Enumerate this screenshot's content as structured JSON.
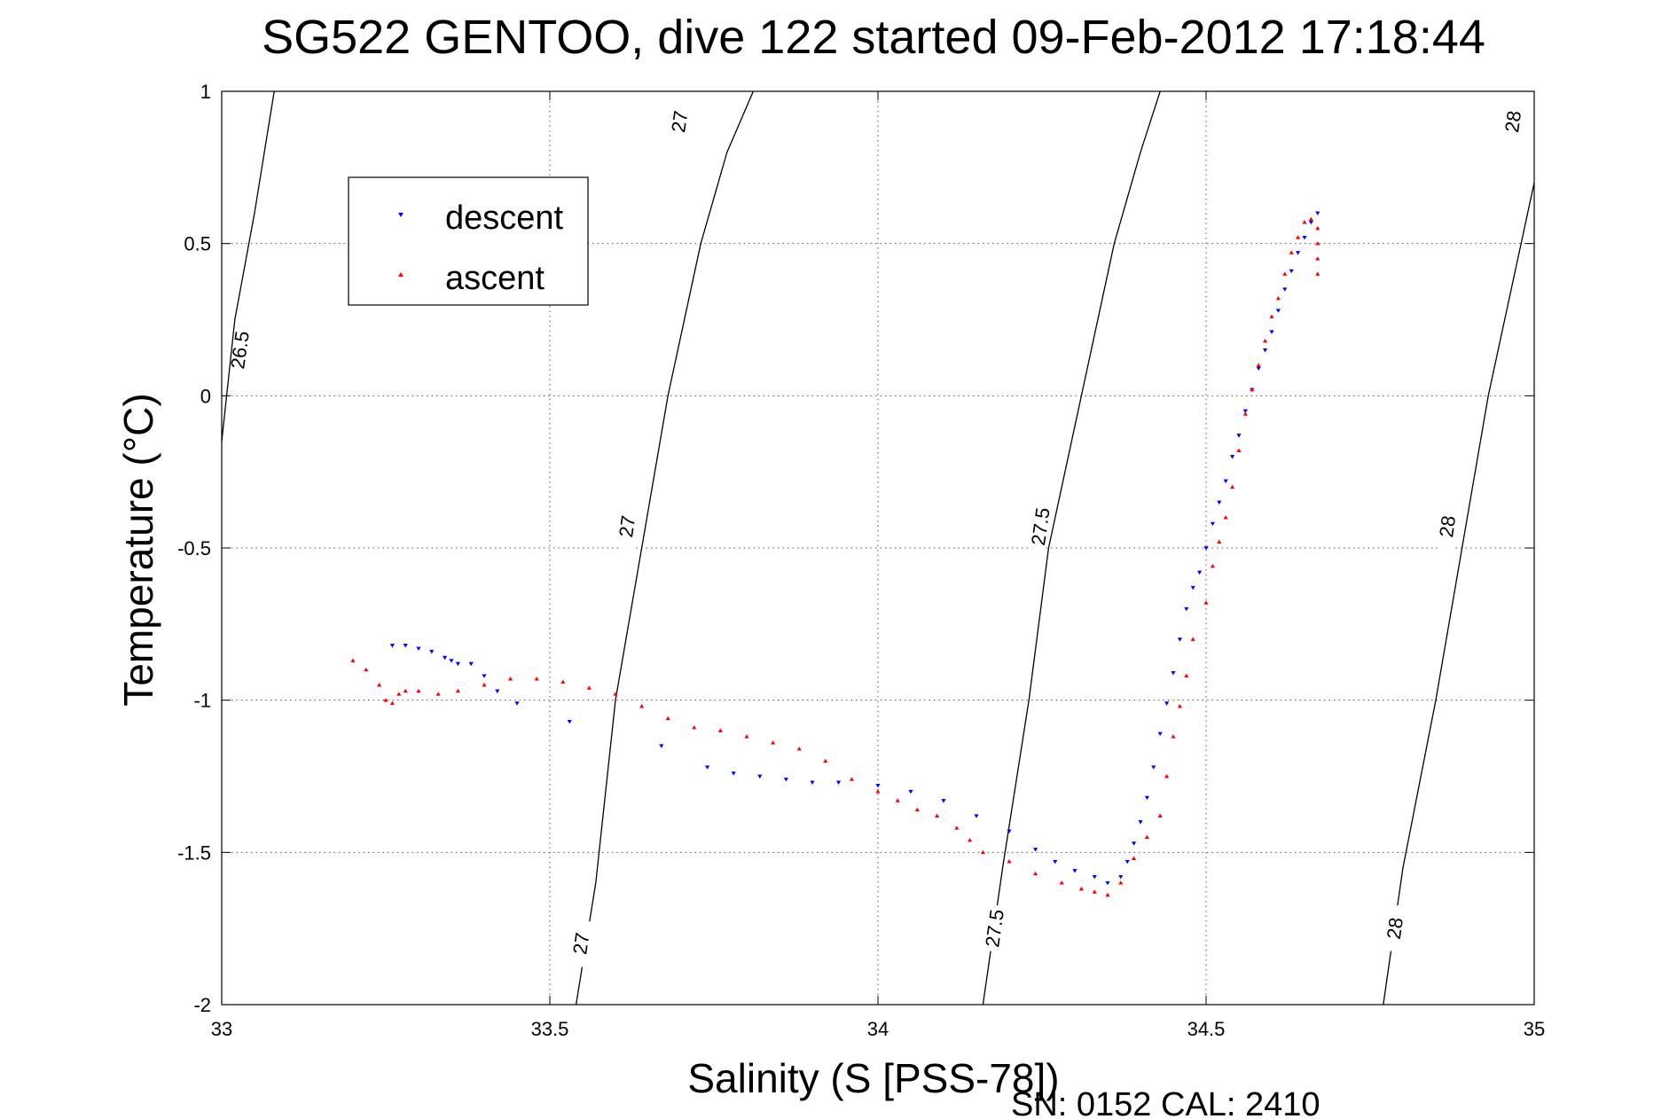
{
  "chart_data": {
    "type": "scatter",
    "title": "SG522 GENTOO, dive 122 started 09-Feb-2012 17:18:44",
    "xlabel": "Salinity (S [PSS-78])",
    "ylabel": "Temperature (°C)",
    "xlim": [
      33,
      35
    ],
    "ylim": [
      -2,
      1
    ],
    "xticks": [
      33,
      33.5,
      34,
      34.5,
      35
    ],
    "xtick_labels": [
      "33",
      "33.5",
      "34",
      "34.5",
      "35"
    ],
    "yticks": [
      -2,
      -1.5,
      -1,
      -0.5,
      0,
      0.5,
      1
    ],
    "ytick_labels": [
      "-2",
      "-1.5",
      "-1",
      "-0.5",
      "0",
      "0.5",
      "1"
    ],
    "grid": true,
    "legend_position": "top-left",
    "footer": "SN: 0152  CAL: 2410",
    "colors": {
      "descent": "#0000ff",
      "ascent": "#ff0000",
      "contour": "#000000"
    },
    "series": [
      {
        "name": "descent",
        "marker": "triangle-down",
        "color": "#0000ff",
        "x": [
          33.26,
          33.28,
          33.3,
          33.32,
          33.34,
          33.35,
          33.36,
          33.38,
          33.4,
          33.42,
          33.45,
          33.53,
          33.67,
          33.74,
          33.78,
          33.82,
          33.86,
          33.9,
          33.94,
          34.0,
          34.05,
          34.1,
          34.15,
          34.2,
          34.24,
          34.27,
          34.3,
          34.33,
          34.35,
          34.37,
          34.38,
          34.39,
          34.4,
          34.41,
          34.42,
          34.43,
          34.44,
          34.45,
          34.46,
          34.47,
          34.48,
          34.49,
          34.5,
          34.51,
          34.52,
          34.53,
          34.54,
          34.55,
          34.56,
          34.57,
          34.58,
          34.59,
          34.6,
          34.61,
          34.62,
          34.63,
          34.64,
          34.65,
          34.66,
          34.67
        ],
        "y": [
          -0.82,
          -0.82,
          -0.83,
          -0.84,
          -0.86,
          -0.87,
          -0.88,
          -0.88,
          -0.92,
          -0.97,
          -1.01,
          -1.07,
          -1.15,
          -1.22,
          -1.24,
          -1.25,
          -1.26,
          -1.27,
          -1.27,
          -1.28,
          -1.3,
          -1.33,
          -1.38,
          -1.43,
          -1.49,
          -1.53,
          -1.56,
          -1.58,
          -1.6,
          -1.58,
          -1.53,
          -1.47,
          -1.4,
          -1.32,
          -1.22,
          -1.11,
          -1.01,
          -0.91,
          -0.8,
          -0.7,
          -0.63,
          -0.58,
          -0.5,
          -0.42,
          -0.35,
          -0.28,
          -0.2,
          -0.13,
          -0.05,
          0.02,
          0.09,
          0.15,
          0.21,
          0.28,
          0.35,
          0.41,
          0.47,
          0.52,
          0.57,
          0.6
        ]
      },
      {
        "name": "ascent",
        "marker": "triangle-up",
        "color": "#ff0000",
        "x": [
          33.2,
          33.22,
          33.24,
          33.25,
          33.26,
          33.27,
          33.28,
          33.3,
          33.33,
          33.36,
          33.4,
          33.44,
          33.48,
          33.52,
          33.56,
          33.6,
          33.64,
          33.68,
          33.72,
          33.76,
          33.8,
          33.84,
          33.88,
          33.92,
          33.96,
          34.0,
          34.03,
          34.06,
          34.09,
          34.12,
          34.14,
          34.16,
          34.2,
          34.24,
          34.28,
          34.31,
          34.33,
          34.35,
          34.37,
          34.39,
          34.41,
          34.43,
          34.44,
          34.45,
          34.46,
          34.47,
          34.48,
          34.5,
          34.51,
          34.52,
          34.53,
          34.54,
          34.55,
          34.56,
          34.57,
          34.58,
          34.59,
          34.6,
          34.61,
          34.62,
          34.63,
          34.64,
          34.65,
          34.66,
          34.67,
          34.67,
          34.67,
          34.67
        ],
        "y": [
          -0.87,
          -0.9,
          -0.95,
          -1.0,
          -1.01,
          -0.98,
          -0.97,
          -0.97,
          -0.98,
          -0.97,
          -0.95,
          -0.93,
          -0.93,
          -0.94,
          -0.96,
          -0.98,
          -1.02,
          -1.06,
          -1.09,
          -1.1,
          -1.12,
          -1.14,
          -1.16,
          -1.2,
          -1.26,
          -1.3,
          -1.33,
          -1.36,
          -1.38,
          -1.42,
          -1.46,
          -1.5,
          -1.53,
          -1.57,
          -1.6,
          -1.62,
          -1.63,
          -1.64,
          -1.6,
          -1.52,
          -1.45,
          -1.38,
          -1.25,
          -1.12,
          -1.02,
          -0.92,
          -0.8,
          -0.68,
          -0.56,
          -0.48,
          -0.4,
          -0.3,
          -0.18,
          -0.06,
          0.02,
          0.1,
          0.18,
          0.26,
          0.32,
          0.4,
          0.47,
          0.52,
          0.57,
          0.58,
          0.55,
          0.5,
          0.45,
          0.4
        ]
      }
    ],
    "contours": [
      {
        "level": "26.5",
        "points": [
          [
            33.0,
            -0.15
          ],
          [
            33.02,
            0.25
          ],
          [
            33.05,
            0.6
          ],
          [
            33.08,
            1.0
          ]
        ],
        "labels": [
          {
            "text": "26.5",
            "x": 33.03,
            "y": 0.15,
            "angle": -82
          }
        ]
      },
      {
        "level": "27",
        "points": [
          [
            33.54,
            -2.0
          ],
          [
            33.57,
            -1.6
          ],
          [
            33.6,
            -1.0
          ],
          [
            33.64,
            -0.5
          ],
          [
            33.68,
            0.0
          ],
          [
            33.73,
            0.5
          ],
          [
            33.77,
            0.8
          ],
          [
            33.81,
            1.0
          ]
        ],
        "labels": [
          {
            "text": "27",
            "x": 33.55,
            "y": -1.8,
            "angle": -82
          },
          {
            "text": "27",
            "x": 33.62,
            "y": -0.43,
            "angle": -82
          },
          {
            "text": "27",
            "x": 33.7,
            "y": 0.9,
            "angle": -82
          }
        ]
      },
      {
        "level": "27.5",
        "points": [
          [
            34.16,
            -2.0
          ],
          [
            34.19,
            -1.55
          ],
          [
            34.23,
            -1.0
          ],
          [
            34.26,
            -0.5
          ],
          [
            34.31,
            0.0
          ],
          [
            34.36,
            0.5
          ],
          [
            34.4,
            0.8
          ],
          [
            34.43,
            1.0
          ]
        ],
        "labels": [
          {
            "text": "27.5",
            "x": 34.18,
            "y": -1.75,
            "angle": -82
          },
          {
            "text": "27.5",
            "x": 34.25,
            "y": -0.43,
            "angle": -82
          }
        ]
      },
      {
        "level": "28",
        "points": [
          [
            34.77,
            -2.0
          ],
          [
            34.8,
            -1.55
          ],
          [
            34.85,
            -1.0
          ],
          [
            34.89,
            -0.5
          ],
          [
            34.93,
            0.0
          ],
          [
            34.98,
            0.5
          ],
          [
            35.01,
            0.8
          ],
          [
            35.03,
            1.0
          ]
        ],
        "labels": [
          {
            "text": "28",
            "x": 34.79,
            "y": -1.75,
            "angle": -82
          },
          {
            "text": "28",
            "x": 34.87,
            "y": -0.43,
            "angle": -82
          },
          {
            "text": "28",
            "x": 34.97,
            "y": 0.9,
            "angle": -82
          }
        ]
      }
    ]
  }
}
